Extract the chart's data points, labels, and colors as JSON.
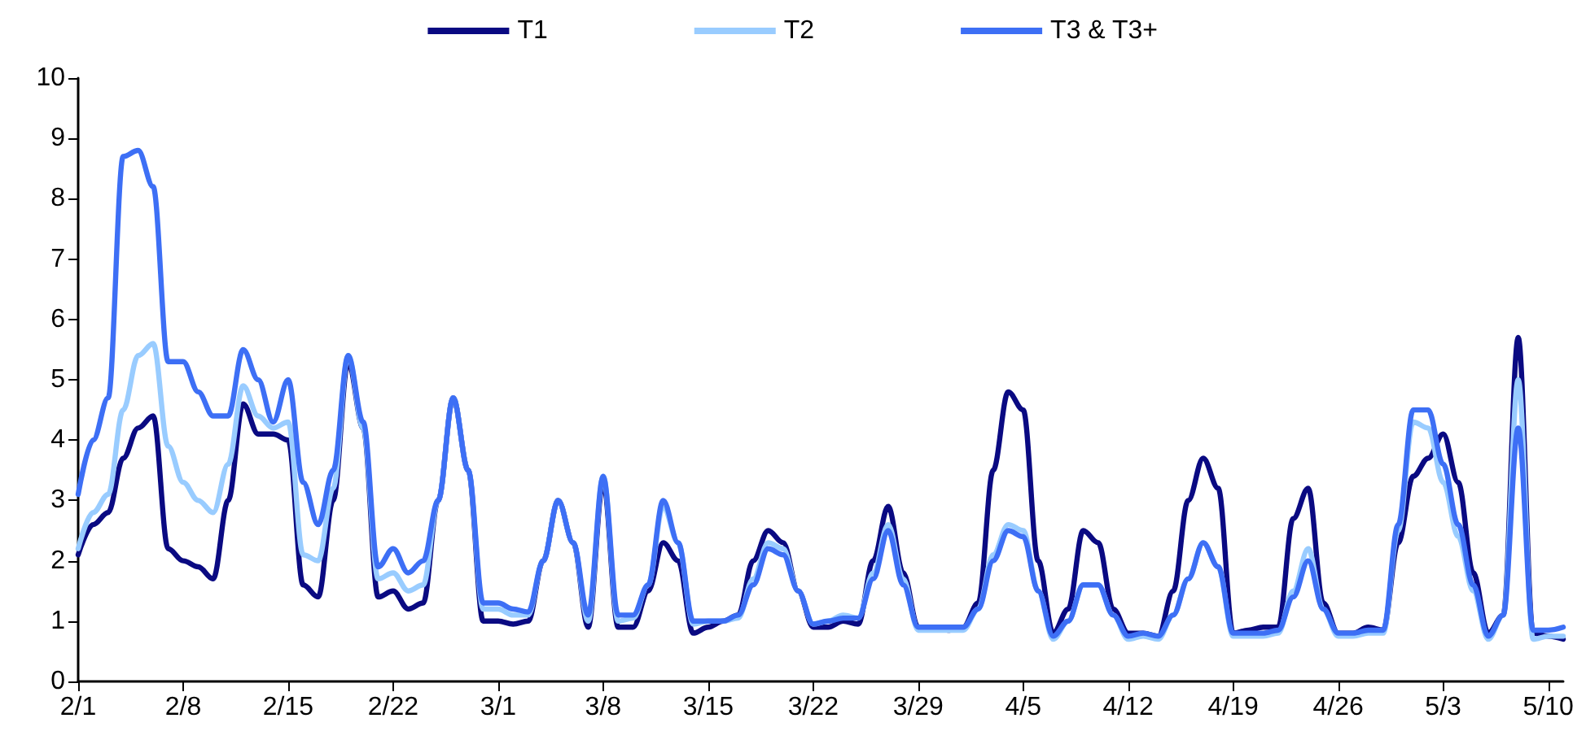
{
  "chart_data": {
    "type": "line",
    "legend": "top",
    "grid": false,
    "marker": "none",
    "line_style": "solid",
    "x": [
      "--02-01",
      "--02-02",
      "--02-03",
      "--02-04",
      "--02-05",
      "--02-06",
      "--02-07",
      "--02-08",
      "--02-09",
      "--02-10",
      "--02-11",
      "--02-12",
      "--02-13",
      "--02-14",
      "--02-15",
      "--02-16",
      "--02-17",
      "--02-18",
      "--02-19",
      "--02-20",
      "--02-21",
      "--02-22",
      "--02-23",
      "--02-24",
      "--02-25",
      "--02-26",
      "--02-27",
      "--02-28",
      "--03-01",
      "--03-02",
      "--03-03",
      "--03-04",
      "--03-05",
      "--03-06",
      "--03-07",
      "--03-08",
      "--03-09",
      "--03-10",
      "--03-11",
      "--03-12",
      "--03-13",
      "--03-14",
      "--03-15",
      "--03-16",
      "--03-17",
      "--03-18",
      "--03-19",
      "--03-20",
      "--03-21",
      "--03-22",
      "--03-23",
      "--03-24",
      "--03-25",
      "--03-26",
      "--03-27",
      "--03-28",
      "--03-29",
      "--03-30",
      "--03-31",
      "--04-01",
      "--04-02",
      "--04-03",
      "--04-04",
      "--04-05",
      "--04-06",
      "--04-07",
      "--04-08",
      "--04-09",
      "--04-10",
      "--04-11",
      "--04-12",
      "--04-13",
      "--04-14",
      "--04-15",
      "--04-16",
      "--04-17",
      "--04-18",
      "--04-19",
      "--04-20",
      "--04-21",
      "--04-22",
      "--04-23",
      "--04-24",
      "--04-25",
      "--04-26",
      "--04-27",
      "--04-28",
      "--04-29",
      "--04-30",
      "--05-01",
      "--05-02",
      "--05-03",
      "--05-04",
      "--05-05",
      "--05-06",
      "--05-07",
      "--05-08",
      "--05-09",
      "--05-10",
      "--05-11"
    ],
    "xlim": [
      "--02-01",
      "--05-11"
    ],
    "xticks": [
      {
        "value": "--02-01",
        "label": "2/1"
      },
      {
        "value": "--02-08",
        "label": "2/8"
      },
      {
        "value": "--02-15",
        "label": "2/15"
      },
      {
        "value": "--02-22",
        "label": "2/22"
      },
      {
        "value": "--03-01",
        "label": "3/1"
      },
      {
        "value": "--03-08",
        "label": "3/8"
      },
      {
        "value": "--03-15",
        "label": "3/15"
      },
      {
        "value": "--03-22",
        "label": "3/22"
      },
      {
        "value": "--03-29",
        "label": "3/29"
      },
      {
        "value": "--04-05",
        "label": "4/5"
      },
      {
        "value": "--04-12",
        "label": "4/12"
      },
      {
        "value": "--04-19",
        "label": "4/19"
      },
      {
        "value": "--04-26",
        "label": "4/26"
      },
      {
        "value": "--05-03",
        "label": "5/3"
      },
      {
        "value": "--05-10",
        "label": "5/10"
      }
    ],
    "ylim": [
      0,
      10
    ],
    "yticks": [
      0,
      1,
      2,
      3,
      4,
      5,
      6,
      7,
      8,
      9,
      10
    ],
    "series": [
      {
        "name": "T1",
        "color": "#0a0a82",
        "values": [
          2.1,
          2.6,
          2.8,
          3.7,
          4.2,
          4.4,
          2.2,
          2.0,
          1.9,
          1.7,
          3.0,
          4.6,
          4.1,
          4.1,
          4.0,
          1.6,
          1.4,
          3.0,
          5.3,
          4.2,
          1.4,
          1.5,
          1.2,
          1.3,
          3.0,
          4.7,
          3.5,
          1.0,
          1.0,
          0.95,
          1.0,
          2.0,
          3.0,
          2.3,
          0.9,
          3.3,
          0.9,
          0.9,
          1.5,
          2.3,
          2.0,
          0.8,
          0.9,
          1.0,
          1.1,
          2.0,
          2.5,
          2.3,
          1.5,
          0.9,
          0.9,
          1.0,
          0.95,
          2.0,
          2.9,
          1.8,
          0.9,
          0.9,
          0.85,
          0.9,
          1.3,
          3.5,
          4.8,
          4.5,
          2.0,
          0.8,
          1.2,
          2.5,
          2.3,
          1.2,
          0.8,
          0.8,
          0.75,
          1.5,
          3.0,
          3.7,
          3.2,
          0.8,
          0.85,
          0.9,
          0.9,
          2.7,
          3.2,
          1.3,
          0.8,
          0.8,
          0.9,
          0.85,
          2.3,
          3.4,
          3.7,
          4.1,
          3.3,
          1.8,
          0.8,
          1.1,
          5.7,
          0.8,
          0.75,
          0.7
        ]
      },
      {
        "name": "T2",
        "color": "#99ccff",
        "values": [
          2.2,
          2.8,
          3.1,
          4.5,
          5.4,
          5.6,
          3.9,
          3.3,
          3.0,
          2.8,
          3.6,
          4.9,
          4.4,
          4.2,
          4.3,
          2.1,
          2.0,
          3.2,
          5.4,
          4.2,
          1.7,
          1.8,
          1.5,
          1.6,
          3.0,
          4.7,
          3.5,
          1.2,
          1.2,
          1.1,
          1.1,
          2.0,
          3.0,
          2.3,
          1.0,
          3.4,
          1.0,
          1.05,
          1.6,
          2.9,
          2.3,
          0.95,
          1.0,
          1.0,
          1.05,
          1.7,
          2.3,
          2.2,
          1.5,
          0.95,
          1.0,
          1.1,
          1.05,
          1.8,
          2.6,
          1.7,
          0.85,
          0.85,
          0.85,
          0.85,
          1.2,
          2.1,
          2.6,
          2.5,
          1.5,
          0.7,
          1.0,
          1.6,
          1.6,
          1.1,
          0.7,
          0.75,
          0.7,
          1.1,
          1.7,
          2.3,
          1.9,
          0.75,
          0.75,
          0.75,
          0.8,
          1.5,
          2.2,
          1.2,
          0.75,
          0.75,
          0.8,
          0.8,
          2.5,
          4.3,
          4.2,
          3.3,
          2.4,
          1.5,
          0.7,
          1.1,
          5.0,
          0.7,
          0.75,
          0.75
        ]
      },
      {
        "name": "T3 & T3+",
        "color": "#3d6ff5",
        "values": [
          3.1,
          4.0,
          4.7,
          8.7,
          8.8,
          8.2,
          5.3,
          5.3,
          4.8,
          4.4,
          4.4,
          5.5,
          5.0,
          4.3,
          5.0,
          3.3,
          2.6,
          3.5,
          5.4,
          4.3,
          1.9,
          2.2,
          1.8,
          2.0,
          3.0,
          4.7,
          3.5,
          1.3,
          1.3,
          1.2,
          1.15,
          2.0,
          3.0,
          2.3,
          1.1,
          3.4,
          1.1,
          1.1,
          1.6,
          3.0,
          2.3,
          1.0,
          1.0,
          1.0,
          1.1,
          1.6,
          2.2,
          2.1,
          1.5,
          0.95,
          1.0,
          1.05,
          1.05,
          1.7,
          2.5,
          1.6,
          0.9,
          0.9,
          0.9,
          0.9,
          1.2,
          2.0,
          2.5,
          2.4,
          1.5,
          0.75,
          1.0,
          1.6,
          1.6,
          1.1,
          0.75,
          0.8,
          0.75,
          1.1,
          1.7,
          2.3,
          1.9,
          0.8,
          0.8,
          0.8,
          0.85,
          1.4,
          2.0,
          1.2,
          0.8,
          0.8,
          0.85,
          0.85,
          2.6,
          4.5,
          4.5,
          3.6,
          2.6,
          1.6,
          0.75,
          1.1,
          4.2,
          0.85,
          0.85,
          0.9
        ]
      }
    ]
  }
}
